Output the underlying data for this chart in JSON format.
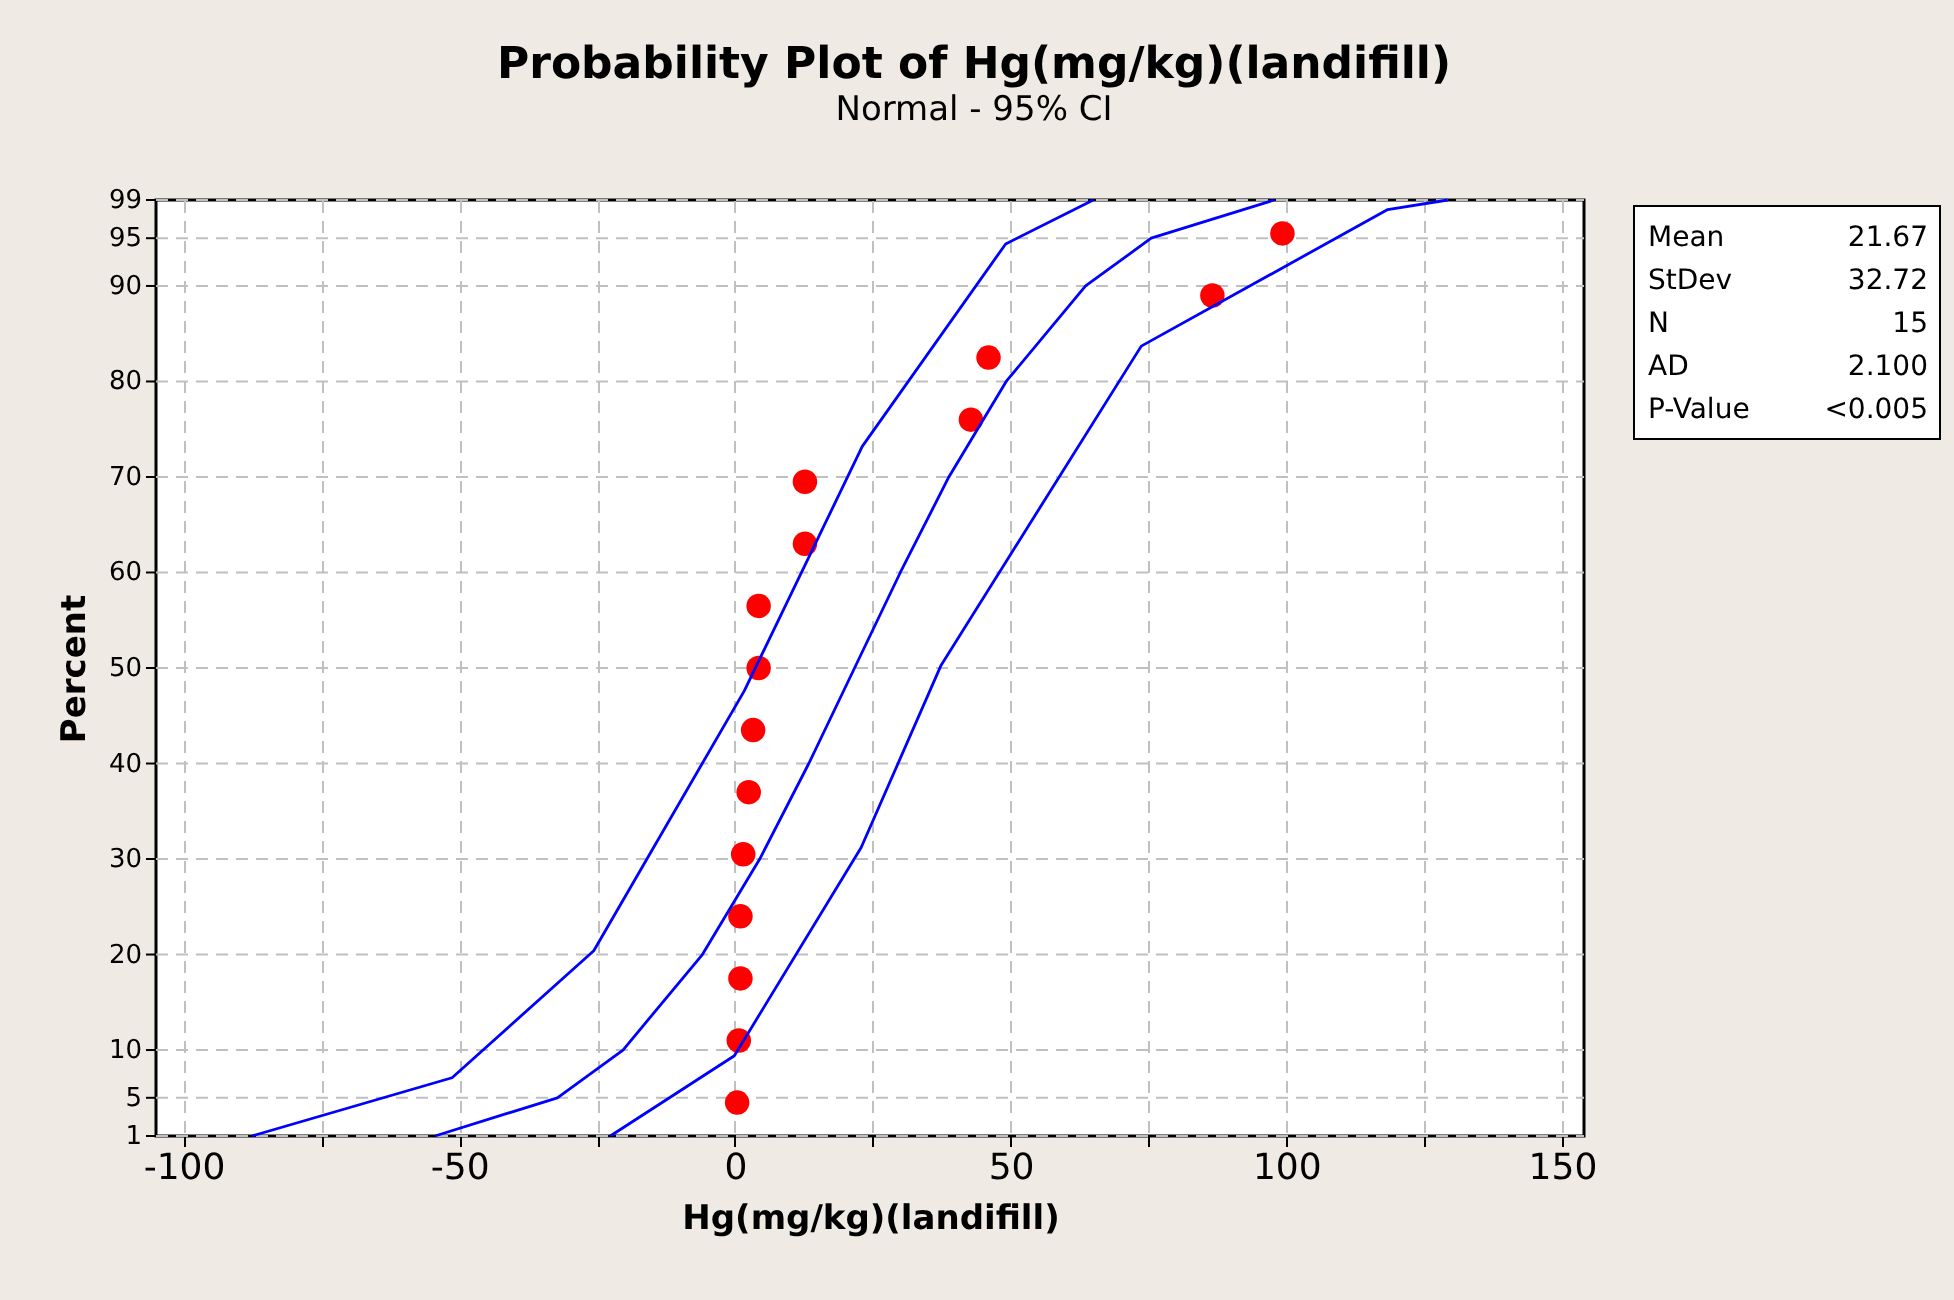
{
  "chart_data": {
    "type": "scatter",
    "title": "Probability Plot of Hg(mg/kg)(landifill)",
    "subtitle": "Normal - 95% CI",
    "xlabel": "Hg(mg/kg)(landifill)",
    "ylabel": "Percent",
    "xlim": [
      -105,
      154
    ],
    "ylim": [
      1,
      99
    ],
    "xticks": [
      -100,
      {
        "value": -75,
        "label": null
      },
      -50,
      {
        "value": -25,
        "label": null
      },
      0,
      {
        "value": 25,
        "label": null
      },
      50,
      {
        "value": 75,
        "label": null
      },
      100,
      {
        "value": 125,
        "label": null
      },
      150
    ],
    "yticks": [
      1,
      5,
      10,
      20,
      30,
      40,
      50,
      60,
      70,
      80,
      90,
      95,
      99
    ],
    "grid": true,
    "marker": "circle",
    "series": [
      {
        "type": "scatter",
        "color": "#ff0000",
        "x": [
          0.4,
          0.7,
          1,
          1,
          1.5,
          2.5,
          3.3,
          4.3,
          4.3,
          12.7,
          12.7,
          42.8,
          46,
          86.6,
          99.3
        ],
        "values": [
          4.5,
          11.0,
          17.5,
          24.0,
          30.5,
          37.0,
          43.5,
          50.0,
          56.5,
          63.0,
          69.5,
          76.0,
          82.5,
          89.0,
          95.5
        ]
      },
      {
        "type": "line",
        "color": "#0000ff",
        "line_style": "solid",
        "marker": "none",
        "x": [
          -54.4,
          -32.2,
          -20.3,
          -5.9,
          4.5,
          13.4,
          21.7,
          30.0,
          38.8,
          49.2,
          63.6,
          75.5,
          97.8
        ],
        "values": [
          1,
          5,
          10,
          20,
          30,
          40,
          50,
          60,
          70,
          80,
          90,
          95,
          99
        ]
      },
      {
        "type": "line",
        "color": "#0000ff",
        "line_style": "solid",
        "marker": "none",
        "x": [
          -87.6,
          -51.3,
          -25.6,
          1.7,
          23.1,
          49.1,
          65
        ],
        "values": [
          1,
          7.1,
          20.4,
          47.6,
          73.2,
          94.4,
          99
        ]
      },
      {
        "type": "line",
        "color": "#0000ff",
        "line_style": "solid",
        "marker": "none",
        "x": [
          -22.6,
          -0.1,
          22.9,
          37.4,
          73.7,
          118.4,
          129.3
        ],
        "values": [
          1,
          9.4,
          31.2,
          50.3,
          83.7,
          98.0,
          99
        ]
      }
    ],
    "annotations": [
      "Mean",
      "21.67",
      "StDev",
      "32.72",
      "N",
      "15",
      "AD",
      "2.100",
      "P-Value",
      "<0.005"
    ]
  }
}
